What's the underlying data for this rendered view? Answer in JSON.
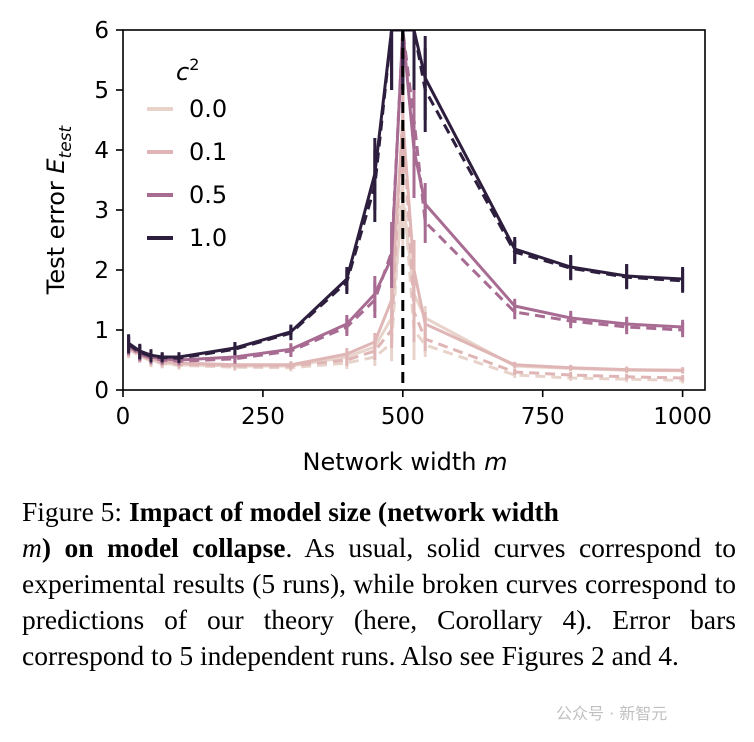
{
  "chart_data": {
    "type": "line",
    "title": "",
    "xlabel": "Network width m",
    "ylabel": "Test error E_test",
    "xlim": [
      0,
      1040
    ],
    "ylim": [
      0,
      6
    ],
    "xticks": [
      0,
      250,
      500,
      750,
      1000
    ],
    "yticks": [
      0,
      1,
      2,
      3,
      4,
      5,
      6
    ],
    "grid": false,
    "legend_title": "c²",
    "legend_position": "top-left",
    "peak_marker": {
      "x": 500,
      "style": "dashed vertical line"
    },
    "series": [
      {
        "name": "0.0",
        "color": "#e8d3cb",
        "x": [
          10,
          30,
          50,
          70,
          100,
          200,
          300,
          400,
          450,
          480,
          500,
          520,
          540,
          700,
          800,
          900,
          1000
        ],
        "experimental": [
          0.72,
          0.6,
          0.5,
          0.45,
          0.42,
          0.4,
          0.4,
          0.55,
          0.72,
          1.2,
          3.2,
          1.6,
          1.2,
          0.4,
          0.36,
          0.33,
          0.32
        ],
        "theory": [
          0.68,
          0.57,
          0.48,
          0.44,
          0.41,
          0.38,
          0.37,
          0.45,
          0.55,
          0.78,
          3.5,
          1.0,
          0.75,
          0.25,
          0.2,
          0.18,
          0.16
        ],
        "error": [
          0.15,
          0.12,
          0.1,
          0.08,
          0.07,
          0.06,
          0.06,
          0.1,
          0.15,
          0.3,
          1.0,
          0.5,
          0.2,
          0.05,
          0.05,
          0.05,
          0.05
        ]
      },
      {
        "name": "0.1",
        "color": "#dfb6b5",
        "x": [
          10,
          30,
          50,
          70,
          100,
          200,
          300,
          400,
          450,
          480,
          500,
          520,
          540,
          700,
          800,
          900,
          1000
        ],
        "experimental": [
          0.72,
          0.6,
          0.52,
          0.48,
          0.45,
          0.42,
          0.42,
          0.6,
          0.8,
          1.5,
          4.5,
          2.0,
          1.1,
          0.42,
          0.37,
          0.34,
          0.33
        ],
        "theory": [
          0.7,
          0.58,
          0.5,
          0.46,
          0.43,
          0.4,
          0.4,
          0.5,
          0.65,
          1.0,
          4.6,
          1.3,
          0.85,
          0.3,
          0.25,
          0.22,
          0.2
        ],
        "error": [
          0.15,
          0.12,
          0.1,
          0.08,
          0.07,
          0.06,
          0.06,
          0.1,
          0.15,
          0.3,
          0.9,
          0.5,
          0.2,
          0.05,
          0.05,
          0.05,
          0.05
        ]
      },
      {
        "name": "0.5",
        "color": "#a86c93",
        "x": [
          10,
          30,
          50,
          70,
          100,
          200,
          300,
          400,
          450,
          480,
          500,
          520,
          540,
          700,
          800,
          900,
          1000
        ],
        "experimental": [
          0.75,
          0.62,
          0.55,
          0.52,
          0.5,
          0.55,
          0.68,
          1.1,
          1.6,
          2.2,
          6.0,
          4.0,
          3.1,
          1.4,
          1.2,
          1.1,
          1.05
        ],
        "theory": [
          0.73,
          0.6,
          0.53,
          0.5,
          0.48,
          0.52,
          0.65,
          1.05,
          1.5,
          2.3,
          6.0,
          4.5,
          2.8,
          1.3,
          1.15,
          1.05,
          1.0
        ],
        "error": [
          0.15,
          0.12,
          0.1,
          0.08,
          0.07,
          0.08,
          0.1,
          0.15,
          0.3,
          0.5,
          1.0,
          0.8,
          0.35,
          0.12,
          0.12,
          0.12,
          0.12
        ]
      },
      {
        "name": "1.0",
        "color": "#2d1e3e",
        "x": [
          10,
          30,
          50,
          70,
          100,
          200,
          300,
          400,
          450,
          480,
          500,
          520,
          540,
          700,
          800,
          900,
          1000
        ],
        "experimental": [
          0.78,
          0.65,
          0.58,
          0.55,
          0.55,
          0.7,
          0.97,
          1.85,
          3.6,
          6.0,
          6.0,
          6.0,
          5.2,
          2.35,
          2.05,
          1.9,
          1.85
        ],
        "theory": [
          0.76,
          0.63,
          0.56,
          0.54,
          0.53,
          0.68,
          0.95,
          1.8,
          3.4,
          6.0,
          6.0,
          6.0,
          5.0,
          2.3,
          2.03,
          1.88,
          1.82
        ],
        "error": [
          0.15,
          0.12,
          0.1,
          0.08,
          0.08,
          0.1,
          0.12,
          0.2,
          0.6,
          1.0,
          1.0,
          1.0,
          0.7,
          0.2,
          0.2,
          0.2,
          0.2
        ]
      }
    ]
  },
  "caption": {
    "lead": "Figure 5:",
    "bold_a": "Impact of model size (network width",
    "var_m": "m",
    "bold_b": ") on model collapse",
    "rest": ". As usual, solid curves correspond to experimental results (5 runs), while broken curves correspond to predictions of our theory (here, Corollary 4). Error bars correspond to 5 independent runs. Also see Figures 2 and 4."
  },
  "watermark": "公众号 · 新智元"
}
